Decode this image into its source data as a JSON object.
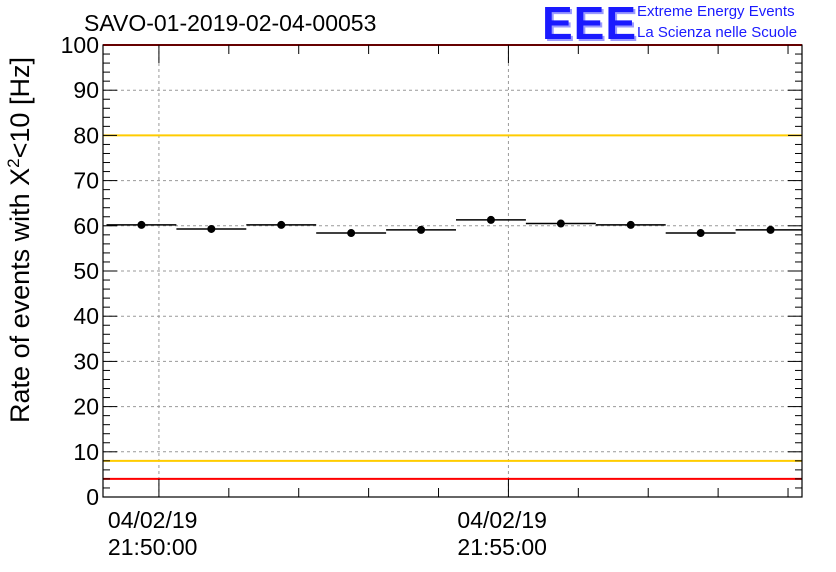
{
  "chart_data": {
    "type": "scatter",
    "title": "SAVO-01-2019-02-04-00053",
    "ylabel_main": "Rate of events with X",
    "ylabel_sup": "2",
    "ylabel_tail": "<10 [Hz]",
    "xlabel": "",
    "ylim": [
      0,
      100
    ],
    "yticks": [
      "0",
      "10",
      "20",
      "30",
      "40",
      "50",
      "60",
      "70",
      "80",
      "90",
      "100"
    ],
    "xticks": [
      {
        "date": "04/02/19",
        "time": "21:50:00",
        "minutes": 0
      },
      {
        "date": "04/02/19",
        "time": "21:55:00",
        "minutes": 5
      }
    ],
    "xlim_minutes": [
      -0.8,
      9.2
    ],
    "points": [
      {
        "x": -0.25,
        "y": 60.2,
        "err": 0.8
      },
      {
        "x": 0.75,
        "y": 59.3,
        "err": 0.8
      },
      {
        "x": 1.75,
        "y": 60.2,
        "err": 0.8
      },
      {
        "x": 2.75,
        "y": 58.4,
        "err": 0.8
      },
      {
        "x": 3.75,
        "y": 59.1,
        "err": 0.8
      },
      {
        "x": 4.75,
        "y": 61.3,
        "err": 0.8
      },
      {
        "x": 5.75,
        "y": 60.5,
        "err": 0.8
      },
      {
        "x": 6.75,
        "y": 60.2,
        "err": 0.8
      },
      {
        "x": 7.75,
        "y": 58.4,
        "err": 0.8
      },
      {
        "x": 8.75,
        "y": 59.1,
        "err": 0.8
      }
    ],
    "bin_width_minutes": 1,
    "reference_lines": [
      {
        "y": 100,
        "color": "#ff0000"
      },
      {
        "y": 80,
        "color": "#ffcc00"
      },
      {
        "y": 8,
        "color": "#ffcc00"
      },
      {
        "y": 4,
        "color": "#ff0000"
      }
    ],
    "grid": true,
    "colors": {
      "data": "#000000",
      "grid": "#999999"
    }
  },
  "logo": {
    "text": "EEE",
    "line1": "Extreme Energy Events",
    "line2": "La Scienza nelle Scuole"
  }
}
